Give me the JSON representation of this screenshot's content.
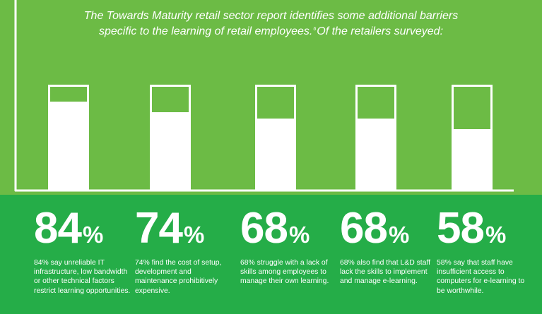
{
  "intro": {
    "line1": "The Towards Maturity retail sector report identifies some additional barriers",
    "line2a": "specific to the learning of retail employees.",
    "footnote": "6",
    "line2b": "Of the retailers surveyed:"
  },
  "colors": {
    "top_background": "#6cbb45",
    "bottom_background": "#25ad48",
    "bar_fill": "#ffffff",
    "text": "#ffffff"
  },
  "chart_data": {
    "type": "bar",
    "categories": [
      "84%",
      "74%",
      "68%",
      "68%",
      "58%"
    ],
    "values": [
      84,
      74,
      68,
      68,
      58
    ],
    "ylim": [
      0,
      100
    ],
    "title": "",
    "xlabel": "",
    "ylabel": "",
    "grid": false
  },
  "stats": [
    {
      "number": "84",
      "sign": "%",
      "desc": "84% say unreliable IT infrastructure, low bandwidth or other technical factors restrict learning opportunities."
    },
    {
      "number": "74",
      "sign": "%",
      "desc": "74% find the cost of setup, development and maintenance prohibitively expensive."
    },
    {
      "number": "68",
      "sign": "%",
      "desc": "68% struggle with a lack of skills among employees to manage their own learning."
    },
    {
      "number": "68",
      "sign": "%",
      "desc": "68% also find that L&D staff lack the skills to implement and manage e-learning."
    },
    {
      "number": "58",
      "sign": "%",
      "desc": "58% say that staff have insufficient access to computers for e-learning to be worthwhile."
    }
  ]
}
